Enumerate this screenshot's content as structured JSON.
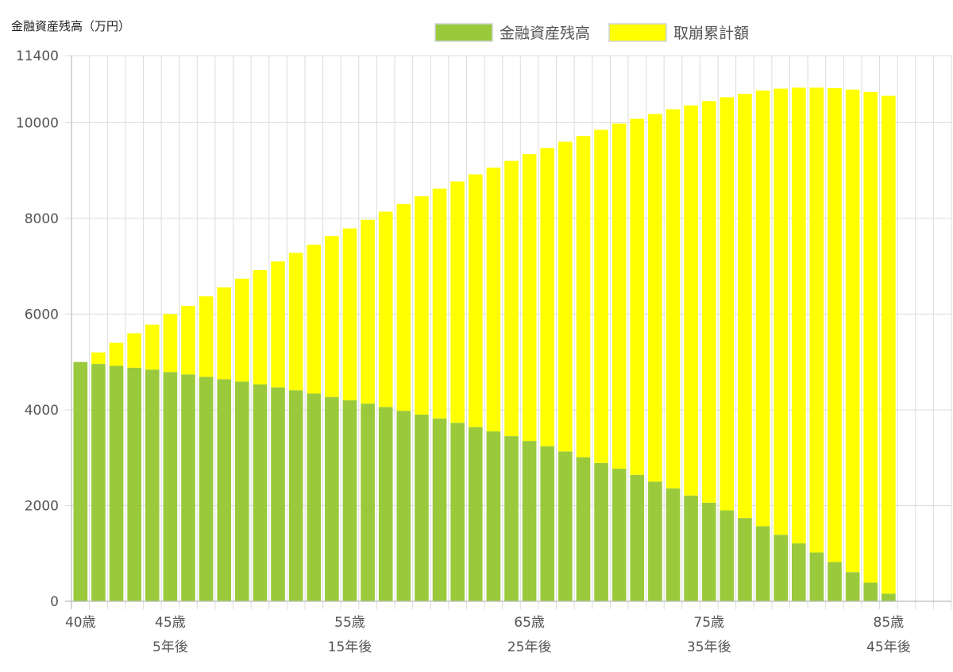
{
  "chart_data": {
    "type": "bar",
    "stacked": true,
    "ylabel": "金融資産残高（万円）",
    "ylim": [
      0,
      11400
    ],
    "yticks": [
      0,
      2000,
      4000,
      6000,
      8000,
      10000,
      11400
    ],
    "grid": true,
    "legend_position": "top",
    "x_slots": 49,
    "age_labels": [
      {
        "index": 0,
        "label": "40歳"
      },
      {
        "index": 5,
        "label": "45歳"
      },
      {
        "index": 15,
        "label": "55歳"
      },
      {
        "index": 25,
        "label": "65歳"
      },
      {
        "index": 35,
        "label": "75歳"
      },
      {
        "index": 45,
        "label": "85歳"
      }
    ],
    "year_labels": [
      {
        "index": 5,
        "label": "5年後"
      },
      {
        "index": 15,
        "label": "15年後"
      },
      {
        "index": 25,
        "label": "25年後"
      },
      {
        "index": 35,
        "label": "35年後"
      },
      {
        "index": 45,
        "label": "45年後"
      }
    ],
    "series": [
      {
        "name": "金融資産残高",
        "color": "#9ACA3C",
        "values": [
          5000,
          4960,
          4920,
          4880,
          4840,
          4790,
          4740,
          4690,
          4640,
          4590,
          4530,
          4470,
          4410,
          4340,
          4270,
          4200,
          4130,
          4060,
          3980,
          3900,
          3820,
          3730,
          3640,
          3550,
          3450,
          3350,
          3240,
          3130,
          3010,
          2890,
          2770,
          2640,
          2500,
          2360,
          2210,
          2060,
          1900,
          1740,
          1570,
          1390,
          1210,
          1020,
          820,
          610,
          390,
          160
        ]
      },
      {
        "name": "取崩累計額",
        "color": "#FFFF00",
        "values": [
          0,
          240,
          480,
          720,
          940,
          1210,
          1430,
          1680,
          1920,
          2150,
          2390,
          2630,
          2870,
          3110,
          3360,
          3590,
          3840,
          4080,
          4320,
          4560,
          4800,
          5040,
          5280,
          5510,
          5750,
          5990,
          6230,
          6470,
          6710,
          6960,
          7210,
          7440,
          7680,
          7920,
          8150,
          8390,
          8630,
          8860,
          9100,
          9320,
          9520,
          9710,
          9900,
          10080,
          10250,
          10400
        ]
      }
    ]
  }
}
